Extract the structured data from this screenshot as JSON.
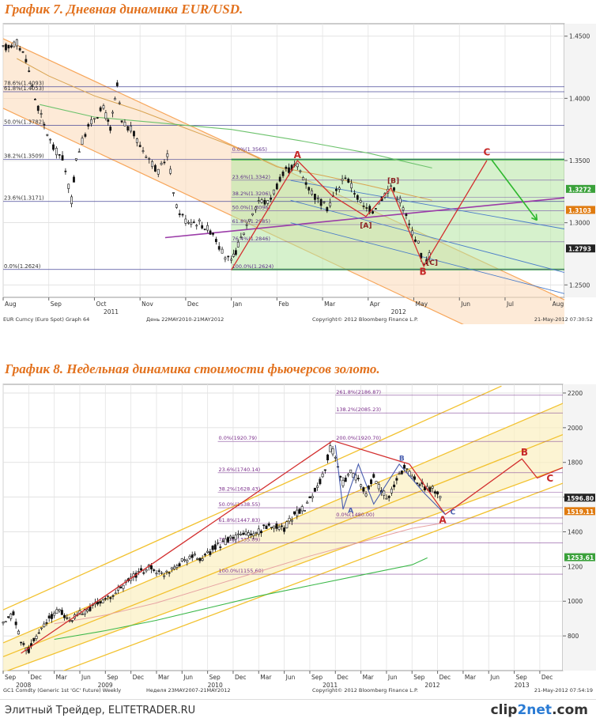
{
  "chart_data": [
    {
      "type": "line",
      "title": "График 7.   Дневная динамика EUR/USD.",
      "ylim": [
        1.24,
        1.46
      ],
      "yticks": [
        1.25,
        1.3,
        1.35,
        1.4,
        1.45
      ],
      "ytick_labels": [
        "1.2500",
        "1.3000",
        "1.3500",
        "1.4000",
        "1.4500"
      ],
      "xticks": [
        {
          "label": "Aug",
          "t": 0
        },
        {
          "label": "Sep",
          "t": 1
        },
        {
          "label": "Oct",
          "t": 2
        },
        {
          "label": "Nov",
          "t": 3
        },
        {
          "label": "Dec",
          "t": 4
        },
        {
          "label": "Jan",
          "t": 5
        },
        {
          "label": "Feb",
          "t": 6
        },
        {
          "label": "Mar",
          "t": 7
        },
        {
          "label": "Apr",
          "t": 8
        },
        {
          "label": "May",
          "t": 9
        },
        {
          "label": "Jun",
          "t": 10
        },
        {
          "label": "Jul",
          "t": 11
        },
        {
          "label": "Aug",
          "t": 12
        }
      ],
      "xlim": [
        0,
        12.3
      ],
      "year_labels": [
        {
          "label": "2011",
          "t": 2.2
        },
        {
          "label": "2012",
          "t": 8.5
        }
      ],
      "price": [
        [
          0,
          1.44
        ],
        [
          0.3,
          1.445
        ],
        [
          0.5,
          1.432
        ],
        [
          0.7,
          1.4
        ],
        [
          0.9,
          1.378
        ],
        [
          1.1,
          1.36
        ],
        [
          1.3,
          1.352
        ],
        [
          1.5,
          1.318
        ],
        [
          1.6,
          1.352
        ],
        [
          1.8,
          1.372
        ],
        [
          2.0,
          1.385
        ],
        [
          2.2,
          1.392
        ],
        [
          2.35,
          1.375
        ],
        [
          2.5,
          1.41
        ],
        [
          2.6,
          1.38
        ],
        [
          2.8,
          1.375
        ],
        [
          3.0,
          1.362
        ],
        [
          3.2,
          1.352
        ],
        [
          3.4,
          1.34
        ],
        [
          3.6,
          1.355
        ],
        [
          3.8,
          1.312
        ],
        [
          4.0,
          1.302
        ],
        [
          4.3,
          1.3
        ],
        [
          4.6,
          1.292
        ],
        [
          4.8,
          1.276
        ],
        [
          5.0,
          1.268
        ],
        [
          5.15,
          1.282
        ],
        [
          5.4,
          1.304
        ],
        [
          5.6,
          1.318
        ],
        [
          5.8,
          1.316
        ],
        [
          6.0,
          1.33
        ],
        [
          6.2,
          1.342
        ],
        [
          6.45,
          1.346
        ],
        [
          6.7,
          1.328
        ],
        [
          6.9,
          1.318
        ],
        [
          7.1,
          1.312
        ],
        [
          7.3,
          1.325
        ],
        [
          7.5,
          1.338
        ],
        [
          7.7,
          1.325
        ],
        [
          7.9,
          1.312
        ],
        [
          8.1,
          1.31
        ],
        [
          8.3,
          1.32
        ],
        [
          8.5,
          1.33
        ],
        [
          8.7,
          1.318
        ],
        [
          8.9,
          1.298
        ],
        [
          9.1,
          1.283
        ],
        [
          9.22,
          1.265
        ],
        [
          9.4,
          1.279
        ]
      ],
      "ma_slow": [
        [
          0.8,
          1.395
        ],
        [
          2,
          1.385
        ],
        [
          3.5,
          1.38
        ],
        [
          5,
          1.375
        ],
        [
          6.5,
          1.366
        ],
        [
          8,
          1.356
        ],
        [
          9.4,
          1.344
        ]
      ],
      "ma_mid": [
        [
          0.3,
          1.432
        ],
        [
          1,
          1.418
        ],
        [
          2,
          1.402
        ],
        [
          3,
          1.39
        ],
        [
          4,
          1.376
        ],
        [
          5,
          1.362
        ],
        [
          6,
          1.345
        ],
        [
          7,
          1.338
        ],
        [
          8,
          1.33
        ],
        [
          9.4,
          1.318
        ]
      ],
      "channel": {
        "upper": [
          [
            0,
            1.448
          ],
          [
            12.3,
            1.238
          ]
        ],
        "lower": [
          [
            0,
            1.392
          ],
          [
            12.3,
            1.18
          ]
        ],
        "color": "#f7a65a"
      },
      "fib_left": [
        {
          "label": "78.6%(1.4093)",
          "y": 1.4093
        },
        {
          "label": "61.8%(1.4053)",
          "y": 1.4053
        },
        {
          "label": "50.0%(1.3782)",
          "y": 1.3782
        },
        {
          "label": "38.2%(1.3509)",
          "y": 1.3509
        },
        {
          "label": "23.6%(1.3171)",
          "y": 1.3171
        },
        {
          "label": "0.0%(1.2624)",
          "y": 1.2624
        }
      ],
      "fib_right": [
        {
          "label": "0.0%(1.3565)",
          "y": 1.3565
        },
        {
          "label": "23.6%(1.3342)",
          "y": 1.3342
        },
        {
          "label": "38.2%(1.3206)",
          "y": 1.3206
        },
        {
          "label": "50.0%(1.3096)",
          "y": 1.3096
        },
        {
          "label": "61.8%(1.2985)",
          "y": 1.2985
        },
        {
          "label": "76.4%(1.2846)",
          "y": 1.2846
        },
        {
          "label": "100.0%(1.2624)",
          "y": 1.2624
        }
      ],
      "box": {
        "t0": 5.0,
        "t1": 12.3,
        "y0": 1.2624,
        "y1": 1.3509
      },
      "projection_color": "#2eb82e",
      "arrow": [
        [
          10.7,
          1.3509
        ],
        [
          11.7,
          1.302
        ]
      ],
      "wave": [
        [
          5.0,
          1.262
        ],
        [
          6.45,
          1.35
        ],
        [
          7.2,
          1.322
        ],
        [
          7.95,
          1.305
        ],
        [
          8.5,
          1.328
        ],
        [
          9.22,
          1.265
        ],
        [
          10.6,
          1.35
        ]
      ],
      "wave_labels": [
        {
          "label": "A",
          "t": 6.45,
          "y": 1.352,
          "color": "#c62828",
          "size": "big"
        },
        {
          "label": "[A]",
          "t": 7.95,
          "y": 1.296,
          "color": "#8b2020",
          "size": "small"
        },
        {
          "label": "[B]",
          "t": 8.55,
          "y": 1.332,
          "color": "#8b2020",
          "size": "small"
        },
        {
          "label": "B",
          "t": 9.2,
          "y": 1.258,
          "color": "#c62828",
          "size": "big"
        },
        {
          "label": "[C]",
          "t": 9.4,
          "y": 1.266,
          "color": "#8b2020",
          "size": "small"
        },
        {
          "label": "C",
          "t": 10.6,
          "y": 1.354,
          "color": "#c62828",
          "size": "big"
        }
      ],
      "trendlines": [
        {
          "from": [
            3.55,
            1.288
          ],
          "to": [
            12.3,
            1.32
          ],
          "color": "#9b3ca8"
        },
        {
          "from": [
            6.3,
            1.334
          ],
          "to": [
            12.3,
            1.295
          ],
          "color": "#4a7cc9"
        },
        {
          "from": [
            6.3,
            1.318
          ],
          "to": [
            12.3,
            1.26
          ],
          "color": "#4a7cc9"
        },
        {
          "from": [
            6.3,
            1.3
          ],
          "to": [
            12.3,
            1.243
          ],
          "color": "#4a7cc9"
        }
      ],
      "current_price": {
        "label": "1.2793",
        "y": 1.2793,
        "bg": "#222222"
      },
      "right_labels": [
        {
          "label": "1.3272",
          "y": 1.3272,
          "bg": "#3aa13a"
        },
        {
          "label": "1.3103",
          "y": 1.3103,
          "bg": "#e07b10"
        }
      ],
      "footer_left": "EUR Curncy (Euro Spot) Graph 64",
      "footer_mid": "День 22MAY2010-21MAY2012",
      "footer_right": "Copyright© 2012 Bloomberg Finance L.P.",
      "footer_date": "21-May-2012 07:30:52"
    },
    {
      "type": "line",
      "title": "График 8.   Недельная динамика стоимости фьючерсов золото.",
      "ylim": [
        600,
        2250
      ],
      "yticks": [
        800,
        1000,
        1200,
        1400,
        1600,
        1800,
        2000,
        2200
      ],
      "xticks": [
        {
          "label": "Sep",
          "t": 0
        },
        {
          "label": "Dec",
          "t": 1
        },
        {
          "label": "Mar",
          "t": 2
        },
        {
          "label": "Jun",
          "t": 3
        },
        {
          "label": "Sep",
          "t": 4
        },
        {
          "label": "Dec",
          "t": 5
        },
        {
          "label": "Mar",
          "t": 6
        },
        {
          "label": "Jun",
          "t": 7
        },
        {
          "label": "Sep",
          "t": 8
        },
        {
          "label": "Dec",
          "t": 9
        },
        {
          "label": "Mar",
          "t": 10
        },
        {
          "label": "Jun",
          "t": 11
        },
        {
          "label": "Sep",
          "t": 12
        },
        {
          "label": "Dec",
          "t": 13
        },
        {
          "label": "Mar",
          "t": 14
        },
        {
          "label": "Jun",
          "t": 15
        },
        {
          "label": "Sep",
          "t": 16
        },
        {
          "label": "Dec",
          "t": 17
        },
        {
          "label": "Mar",
          "t": 18
        },
        {
          "label": "Jun",
          "t": 19
        },
        {
          "label": "Sep",
          "t": 20
        },
        {
          "label": "Dec",
          "t": 21
        }
      ],
      "xlim": [
        0,
        21.9
      ],
      "year_labels": [
        {
          "label": "2008",
          "t": 0.5
        },
        {
          "label": "2009",
          "t": 3.7
        },
        {
          "label": "2010",
          "t": 8.0
        },
        {
          "label": "2011",
          "t": 12.5
        },
        {
          "label": "2012",
          "t": 16.5
        },
        {
          "label": "2013",
          "t": 20.0
        }
      ],
      "price": [
        [
          0,
          860
        ],
        [
          0.4,
          930
        ],
        [
          0.7,
          760
        ],
        [
          1.0,
          720
        ],
        [
          1.4,
          820
        ],
        [
          1.8,
          900
        ],
        [
          2.2,
          950
        ],
        [
          2.6,
          880
        ],
        [
          3.0,
          930
        ],
        [
          3.4,
          960
        ],
        [
          3.8,
          1000
        ],
        [
          4.2,
          1020
        ],
        [
          4.6,
          1080
        ],
        [
          5.0,
          1130
        ],
        [
          5.4,
          1170
        ],
        [
          5.8,
          1200
        ],
        [
          6.2,
          1150
        ],
        [
          6.6,
          1190
        ],
        [
          7.0,
          1230
        ],
        [
          7.4,
          1260
        ],
        [
          7.8,
          1240
        ],
        [
          8.2,
          1300
        ],
        [
          8.6,
          1340
        ],
        [
          9.0,
          1360
        ],
        [
          9.4,
          1390
        ],
        [
          9.8,
          1380
        ],
        [
          10.2,
          1420
        ],
        [
          10.6,
          1440
        ],
        [
          11.0,
          1420
        ],
        [
          11.4,
          1500
        ],
        [
          11.8,
          1540
        ],
        [
          12.2,
          1640
        ],
        [
          12.5,
          1720
        ],
        [
          12.8,
          1880
        ],
        [
          13.0,
          1840
        ],
        [
          13.3,
          1680
        ],
        [
          13.6,
          1740
        ],
        [
          13.9,
          1690
        ],
        [
          14.2,
          1620
        ],
        [
          14.5,
          1720
        ],
        [
          14.8,
          1640
        ],
        [
          15.1,
          1590
        ],
        [
          15.4,
          1700
        ],
        [
          15.7,
          1780
        ],
        [
          16.0,
          1720
        ],
        [
          16.3,
          1680
        ],
        [
          16.6,
          1650
        ],
        [
          16.9,
          1640
        ],
        [
          17.2,
          1580
        ]
      ],
      "ma_long": [
        [
          2,
          780
        ],
        [
          4,
          830
        ],
        [
          6,
          890
        ],
        [
          8,
          960
        ],
        [
          10,
          1030
        ],
        [
          12,
          1090
        ],
        [
          14,
          1150
        ],
        [
          16,
          1210
        ],
        [
          16.6,
          1250
        ]
      ],
      "ma_mid": [
        [
          2,
          870
        ],
        [
          4,
          920
        ],
        [
          6,
          990
        ],
        [
          8,
          1080
        ],
        [
          10,
          1170
        ],
        [
          12,
          1260
        ],
        [
          14,
          1340
        ],
        [
          16,
          1420
        ],
        [
          17.2,
          1450
        ]
      ],
      "channel": {
        "lines": [
          [
            [
              0,
              950
            ],
            [
              19.5,
              2240
            ]
          ],
          [
            [
              0,
              760
            ],
            [
              21.9,
              2140
            ]
          ],
          [
            [
              0,
              680
            ],
            [
              21.9,
              1960
            ]
          ],
          [
            [
              0,
              590
            ],
            [
              21.9,
              1770
            ]
          ],
          [
            [
              2.2,
              590
            ],
            [
              21.9,
              1680
            ]
          ]
        ],
        "fill_between": [
          1,
          3
        ],
        "color": "#f2c230"
      },
      "fib": [
        {
          "label": "261.8%(2186.87)",
          "y": 2186.87,
          "t0": 13.0
        },
        {
          "label": "138.2%(2085.23)",
          "y": 2085.23,
          "t0": 13.0
        },
        {
          "label": "0.0%(1920.79)",
          "y": 1920.79,
          "t0": 8.4
        },
        {
          "label": "200.0%(1920.70)",
          "y": 1920.7,
          "t0": 13.0
        },
        {
          "label": "23.6%(1740.14)",
          "y": 1740.14,
          "t0": 8.4
        },
        {
          "label": "38.2%(1628.43)",
          "y": 1628.43,
          "t0": 8.4
        },
        {
          "label": "50.0%(1538.55)",
          "y": 1538.55,
          "t0": 8.4
        },
        {
          "label": "0.0%(1480.00)",
          "y": 1480.0,
          "t0": 13.0
        },
        {
          "label": "61.8%(1447.83)",
          "y": 1447.83,
          "t0": 8.4
        },
        {
          "label": "76.4%(1335.09)",
          "y": 1335.09,
          "t0": 8.4
        },
        {
          "label": "100.0%(1155.60)",
          "y": 1155.6,
          "t0": 8.4
        }
      ],
      "wave_main": [
        [
          0.7,
          700
        ],
        [
          12.9,
          1925
        ],
        [
          15.9,
          1790
        ],
        [
          17.3,
          1500
        ],
        [
          20.3,
          1820
        ],
        [
          20.9,
          1710
        ],
        [
          21.9,
          1770
        ]
      ],
      "wave_inner": [
        [
          13.0,
          1900
        ],
        [
          13.3,
          1530
        ],
        [
          13.9,
          1790
        ],
        [
          14.5,
          1560
        ],
        [
          15.5,
          1790
        ],
        [
          16.5,
          1620
        ],
        [
          17.3,
          1500
        ]
      ],
      "wave_labels": [
        {
          "label": "A",
          "t": 13.6,
          "y": 1510,
          "color": "#4a5fb0",
          "size": "small"
        },
        {
          "label": "B",
          "t": 15.6,
          "y": 1810,
          "color": "#4a5fb0",
          "size": "small"
        },
        {
          "label": "C",
          "t": 17.6,
          "y": 1500,
          "color": "#4a5fb0",
          "size": "small"
        },
        {
          "label": "A",
          "t": 17.2,
          "y": 1450,
          "color": "#c62828",
          "size": "big"
        },
        {
          "label": "B",
          "t": 20.4,
          "y": 1840,
          "color": "#c62828",
          "size": "big"
        },
        {
          "label": "C",
          "t": 21.4,
          "y": 1690,
          "color": "#c62828",
          "size": "big"
        }
      ],
      "current_price": {
        "label": "1596.80",
        "y": 1596.8,
        "bg": "#222222"
      },
      "right_labels": [
        {
          "label": "1519.11",
          "y": 1519.11,
          "bg": "#e07b10"
        },
        {
          "label": "1253.61",
          "y": 1253.61,
          "bg": "#3aa13a"
        }
      ],
      "footer_left": "GC1 Comdty (Generic 1st 'GC' Future) Weekly",
      "footer_mid": "Неделя 23MAY2007-21MAY2012",
      "footer_right": "Copyright© 2012 Bloomberg Finance L.P.",
      "footer_date": "21-May-2012 07:54:19"
    }
  ],
  "footer": {
    "text": "Элитный Трейдер, ELITETRADER.RU",
    "logo_main": "clip",
    "logo_accent": "2net",
    "logo_tail": ".com"
  }
}
